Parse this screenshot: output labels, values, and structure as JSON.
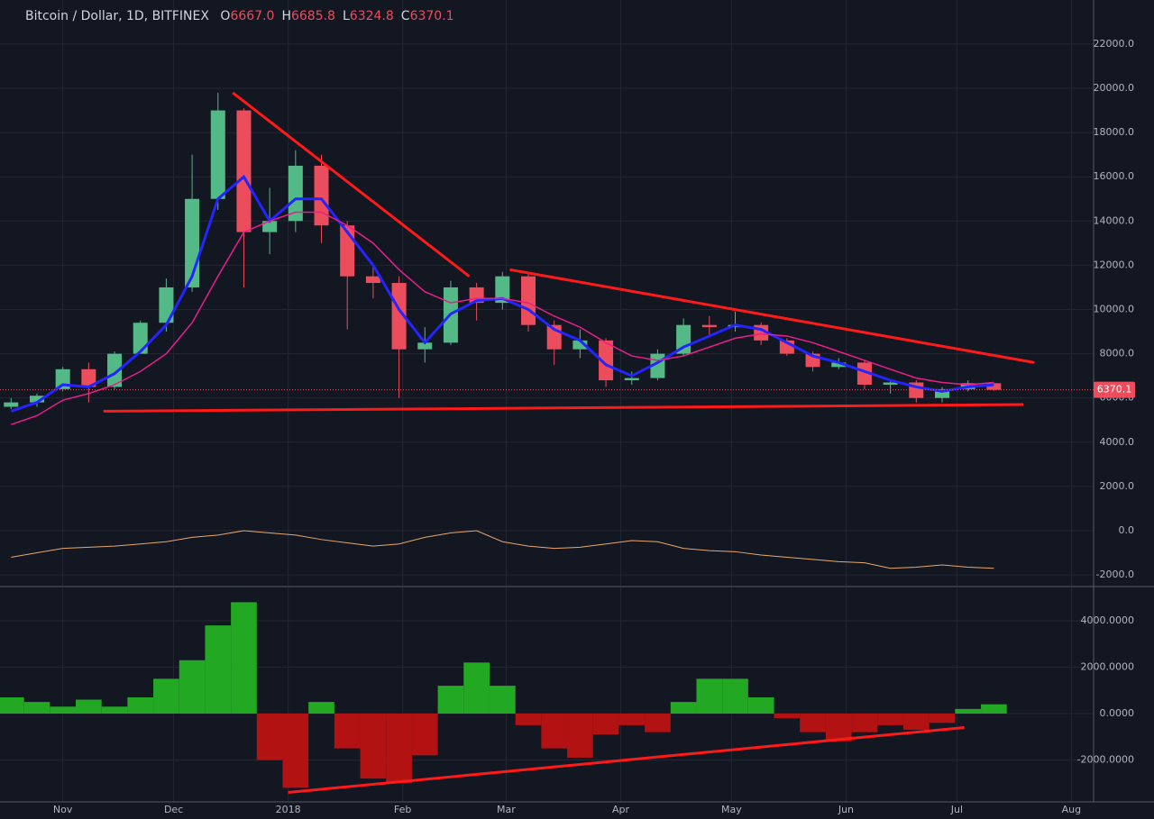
{
  "chart_data": [
    {
      "type": "candlestick",
      "title": "Bitcoin / Dollar, 1D, BITFINEX",
      "ohlc_labels": [
        {
          "key": "O",
          "text": "6667.0"
        },
        {
          "key": "H",
          "text": "6685.8"
        },
        {
          "key": "L",
          "text": "6324.8"
        },
        {
          "key": "C",
          "text": "6370.1"
        }
      ],
      "x": [
        -14,
        -7,
        0,
        7,
        14,
        21,
        28,
        35,
        42,
        49,
        56,
        63,
        70,
        77,
        84,
        91,
        98,
        105,
        112,
        119,
        126,
        133,
        140,
        147,
        154,
        161,
        168,
        175,
        182,
        189,
        196,
        203,
        210,
        217,
        224,
        231,
        238,
        245,
        252
      ],
      "open": [
        5600,
        5800,
        6400,
        7300,
        6500,
        8000,
        9400,
        11000,
        15000,
        19000,
        13500,
        14000,
        16500,
        13800,
        11500,
        11200,
        8200,
        8500,
        11000,
        10300,
        11500,
        9300,
        8200,
        8600,
        6800,
        6900,
        8000,
        9300,
        9200,
        9300,
        8600,
        8000,
        7400,
        7600,
        6600,
        6700,
        6000,
        6400,
        6667
      ],
      "high": [
        6000,
        6200,
        7400,
        7600,
        8100,
        9500,
        11400,
        17000,
        19800,
        19100,
        15500,
        17200,
        17000,
        14000,
        12000,
        11500,
        9200,
        11300,
        11200,
        11700,
        11600,
        9500,
        9100,
        8700,
        7200,
        8200,
        9600,
        9700,
        9900,
        9400,
        8700,
        8100,
        7800,
        7700,
        6800,
        6800,
        6500,
        6800,
        6685.8
      ],
      "low": [
        5500,
        5600,
        6300,
        5800,
        6400,
        8000,
        9000,
        10800,
        14500,
        11000,
        12500,
        13500,
        13000,
        9100,
        10500,
        6000,
        7600,
        8400,
        9500,
        10000,
        9000,
        7500,
        7800,
        6500,
        6600,
        6800,
        7900,
        8800,
        9000,
        8400,
        7900,
        7200,
        7300,
        6400,
        6200,
        5800,
        5800,
        6300,
        6324.8
      ],
      "close": [
        5800,
        6100,
        7300,
        6500,
        8000,
        9400,
        11000,
        15000,
        19000,
        13500,
        14000,
        16500,
        13800,
        11500,
        11200,
        8200,
        8500,
        11000,
        10300,
        11500,
        9300,
        8200,
        8600,
        6800,
        6900,
        8000,
        9300,
        9200,
        9300,
        8600,
        8000,
        7400,
        7600,
        6600,
        6700,
        6000,
        6400,
        6667,
        6370.1
      ],
      "up_color": "#53b987",
      "down_color": "#eb4d5c",
      "lines": [
        {
          "color": "#2424ff",
          "width": 3,
          "values": [
            5400,
            5800,
            6600,
            6500,
            7100,
            8100,
            9300,
            11500,
            15000,
            16000,
            14000,
            15000,
            15000,
            13500,
            12000,
            10000,
            8500,
            9800,
            10400,
            10500,
            10000,
            9100,
            8600,
            7500,
            7000,
            7600,
            8300,
            8800,
            9300,
            9100,
            8500,
            7900,
            7600,
            7200,
            6800,
            6500,
            6300,
            6500,
            6600
          ]
        },
        {
          "color": "#e91e8c",
          "width": 1.5,
          "values": [
            4800,
            5200,
            5900,
            6200,
            6600,
            7200,
            8000,
            9400,
            11500,
            13500,
            14000,
            14400,
            14400,
            13800,
            13000,
            11800,
            10800,
            10300,
            10500,
            10500,
            10300,
            9700,
            9200,
            8500,
            7900,
            7700,
            7900,
            8300,
            8700,
            8900,
            8800,
            8500,
            8100,
            7700,
            7300,
            6900,
            6700,
            6600,
            6700
          ]
        },
        {
          "color": "#e8a86a",
          "width": 1,
          "values": [
            -1200,
            -1000,
            -800,
            -750,
            -700,
            -600,
            -500,
            -300,
            -200,
            0,
            -100,
            -200,
            -400,
            -550,
            -700,
            -600,
            -300,
            -100,
            0,
            -500,
            -700,
            -800,
            -750,
            -600,
            -450,
            -500,
            -800,
            -900,
            -950,
            -1100,
            -1200,
            -1300,
            -1400,
            -1450,
            -1700,
            -1650,
            -1550,
            -1650,
            -1700
          ]
        }
      ],
      "trendline_color": "#ff1a1a",
      "trendlines": [
        {
          "x": [
            46,
            110
          ],
          "y": [
            19800,
            11500
          ]
        },
        {
          "x": [
            121,
            263
          ],
          "y": [
            11800,
            7600
          ]
        },
        {
          "x": [
            11,
            260
          ],
          "y": [
            5400,
            5700
          ]
        }
      ],
      "last_price": {
        "value": 6370.1,
        "label": "6370.1"
      },
      "xlim": [
        -17,
        279
      ],
      "ylim": [
        -2485,
        23992
      ],
      "yticks": [
        {
          "value": 22000,
          "label": "22000.0"
        },
        {
          "value": 20000,
          "label": "20000.0"
        },
        {
          "value": 18000,
          "label": "18000.0"
        },
        {
          "value": 16000,
          "label": "16000.0"
        },
        {
          "value": 14000,
          "label": "14000.0"
        },
        {
          "value": 12000,
          "label": "12000.0"
        },
        {
          "value": 10000,
          "label": "10000.0"
        },
        {
          "value": 8000,
          "label": "8000.0"
        },
        {
          "value": 6000,
          "label": "6000.0"
        },
        {
          "value": 4000,
          "label": "4000.0"
        },
        {
          "value": 2000,
          "label": "2000.0"
        },
        {
          "value": 0,
          "label": "0.0"
        },
        {
          "value": -2000,
          "label": "-2000.0"
        }
      ],
      "grid": true
    },
    {
      "type": "bar",
      "x": [
        -14,
        -7,
        0,
        7,
        14,
        21,
        28,
        35,
        42,
        49,
        56,
        63,
        70,
        77,
        84,
        91,
        98,
        105,
        112,
        119,
        126,
        133,
        140,
        147,
        154,
        161,
        168,
        175,
        182,
        189,
        196,
        203,
        210,
        217,
        224,
        231,
        238,
        245,
        252
      ],
      "values": [
        700,
        500,
        300,
        600,
        300,
        700,
        1500,
        2300,
        3800,
        4800,
        -2000,
        -3200,
        500,
        -1500,
        -2800,
        -3000,
        -1800,
        1200,
        2200,
        1200,
        -500,
        -1500,
        -1900,
        -900,
        -500,
        -800,
        500,
        1500,
        1500,
        700,
        -200,
        -800,
        -1200,
        -800,
        -500,
        -700,
        -400,
        200,
        400
      ],
      "up_color": "#22a822",
      "down_color": "#b31212",
      "trendline_color": "#ff1a1a",
      "trendlines": [
        {
          "x": [
            61,
            244
          ],
          "y": [
            -3400,
            -600
          ]
        }
      ],
      "xlim": [
        -17,
        279
      ],
      "ylim": [
        -3806,
        5437
      ],
      "yticks": [
        {
          "value": 4000,
          "label": "4000.0000"
        },
        {
          "value": 2000,
          "label": "2000.0000"
        },
        {
          "value": 0,
          "label": "0.0000"
        },
        {
          "value": -2000,
          "label": "-2000.0000"
        }
      ],
      "xticks": [
        {
          "value": 0,
          "label": "Nov"
        },
        {
          "value": 30,
          "label": "Dec"
        },
        {
          "value": 61,
          "label": "2018"
        },
        {
          "value": 92,
          "label": "Feb"
        },
        {
          "value": 120,
          "label": "Mar"
        },
        {
          "value": 151,
          "label": "Apr"
        },
        {
          "value": 181,
          "label": "May"
        },
        {
          "value": 212,
          "label": "Jun"
        },
        {
          "value": 242,
          "label": "Jul"
        },
        {
          "value": 273,
          "label": "Aug"
        }
      ],
      "grid": true
    }
  ]
}
